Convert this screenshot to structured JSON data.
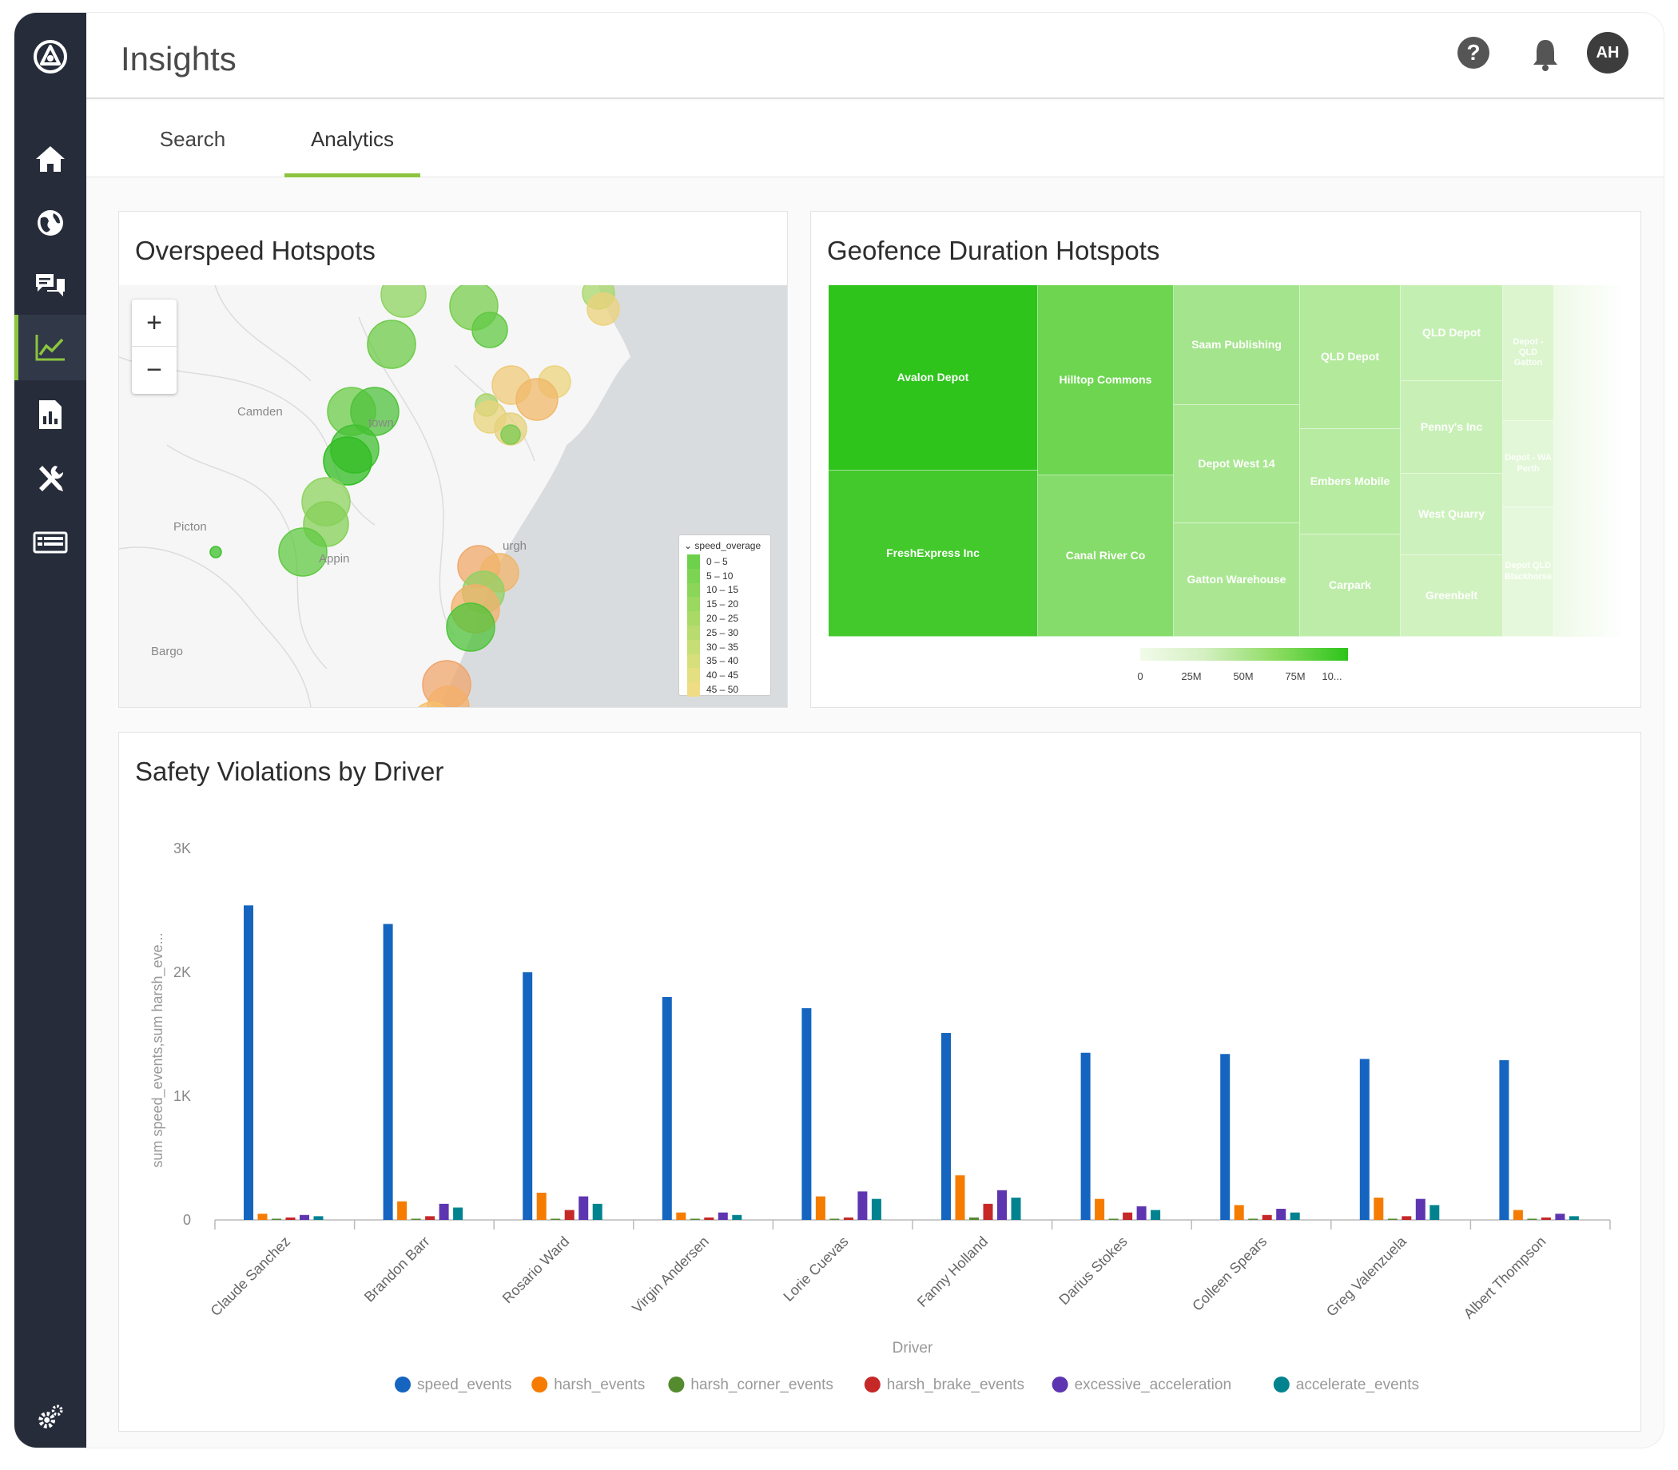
{
  "app": {
    "title": "Insights",
    "avatar_initials": "AH",
    "icons": {
      "logo": "brand-logo-icon",
      "help": "help-icon",
      "notifications": "bell-icon"
    }
  },
  "sidebar": {
    "items": [
      {
        "name": "home",
        "icon": "home-icon"
      },
      {
        "name": "global",
        "icon": "globe-icon"
      },
      {
        "name": "messages",
        "icon": "chat-icon"
      },
      {
        "name": "insights",
        "icon": "trend-chart-icon",
        "active": true
      },
      {
        "name": "reports",
        "icon": "report-icon"
      },
      {
        "name": "tools",
        "icon": "tools-icon"
      },
      {
        "name": "list",
        "icon": "list-icon"
      }
    ],
    "settings_icon": "settings-gear-icon"
  },
  "tabs": [
    {
      "label": "Search",
      "active": false
    },
    {
      "label": "Analytics",
      "active": true
    }
  ],
  "overspeed": {
    "title": "Overspeed Hotspots",
    "zoom_in": "+",
    "zoom_out": "−",
    "map_labels": [
      "Camden",
      "Picton",
      "Appin",
      "Bargo",
      "town",
      "urgh"
    ],
    "legend_title": "speed_overage",
    "legend_items": [
      {
        "label": "0 – 5",
        "color": "#6dd14b"
      },
      {
        "label": "5 – 10",
        "color": "#7cd452"
      },
      {
        "label": "10 – 15",
        "color": "#8bd659"
      },
      {
        "label": "15 – 20",
        "color": "#9ad860"
      },
      {
        "label": "20 – 25",
        "color": "#a9da66"
      },
      {
        "label": "25 – 30",
        "color": "#b8dc6d"
      },
      {
        "label": "30 – 35",
        "color": "#c7de74"
      },
      {
        "label": "35 – 40",
        "color": "#d6df7a"
      },
      {
        "label": "40 – 45",
        "color": "#e4df80"
      },
      {
        "label": "45 – 50",
        "color": "#f0dc84"
      }
    ]
  },
  "geofence": {
    "title": "Geofence Duration Hotspots",
    "cells": [
      {
        "label": "Avalon Depot",
        "color": "#2ec41c"
      },
      {
        "label": "FreshExpress Inc",
        "color": "#43c92c"
      },
      {
        "label": "Hilltop Commons",
        "color": "#6dd550"
      },
      {
        "label": "Canal River Co",
        "color": "#86dc6a"
      },
      {
        "label": "Saam Publishing",
        "color": "#a4e48c"
      },
      {
        "label": "Depot West 14",
        "color": "#a8e690"
      },
      {
        "label": "Gatton Warehouse",
        "color": "#abe793"
      },
      {
        "label": "QLD Depot",
        "color": "#b2e99b"
      },
      {
        "label": "Embers Mobile",
        "color": "#b8eba2"
      },
      {
        "label": "Carpark",
        "color": "#bdeca8"
      },
      {
        "label": "QLD Depot",
        "color": "#c4efb2"
      },
      {
        "label": "Penny's Inc",
        "color": "#c8f0b6"
      },
      {
        "label": "West Quarry",
        "color": "#cdf1bc"
      },
      {
        "label": "Greenbelt",
        "color": "#d0f2bf"
      },
      {
        "label": "Depot - QLD Gatton",
        "color": "#dcf5cf"
      },
      {
        "label": "Depot - WA Perth",
        "color": "#e2f7d7"
      },
      {
        "label": "Depot QLD Blackhorse",
        "color": "#e6f8dc"
      }
    ],
    "scale_ticks": [
      "0",
      "25M",
      "50M",
      "75M",
      "10..."
    ]
  },
  "violations": {
    "title": "Safety Violations by Driver",
    "chart_data": {
      "type": "bar",
      "xlabel": "Driver",
      "ylabel": "sum speed_events,sum harsh_eve...",
      "ylim": [
        0,
        3000
      ],
      "yticks": [
        "0",
        "1K",
        "2K",
        "3K"
      ],
      "legend_position": "bottom",
      "categories": [
        "Claude Sanchez",
        "Brandon Barr",
        "Rosario Ward",
        "Virgin Andersen",
        "Lorie Cuevas",
        "Fanny Holland",
        "Darius Stokes",
        "Colleen Spears",
        "Greg Valenzuela",
        "Albert Thompson"
      ],
      "series": [
        {
          "name": "speed_events",
          "color": "#1565c0",
          "values": [
            2540,
            2390,
            2000,
            1800,
            1710,
            1510,
            1350,
            1340,
            1300,
            1290
          ]
        },
        {
          "name": "harsh_events",
          "color": "#f57c00",
          "values": [
            50,
            150,
            220,
            60,
            190,
            360,
            170,
            120,
            180,
            80
          ]
        },
        {
          "name": "harsh_corner_events",
          "color": "#558b2f",
          "values": [
            10,
            10,
            10,
            10,
            10,
            20,
            10,
            10,
            10,
            10
          ]
        },
        {
          "name": "harsh_brake_events",
          "color": "#c62828",
          "values": [
            20,
            30,
            80,
            20,
            20,
            130,
            60,
            40,
            30,
            20
          ]
        },
        {
          "name": "excessive_acceleration",
          "color": "#5e35b1",
          "values": [
            40,
            130,
            190,
            60,
            230,
            240,
            110,
            90,
            170,
            50
          ]
        },
        {
          "name": "accelerate_events",
          "color": "#00838f",
          "values": [
            30,
            100,
            130,
            40,
            170,
            180,
            80,
            60,
            120,
            30
          ]
        }
      ]
    }
  }
}
